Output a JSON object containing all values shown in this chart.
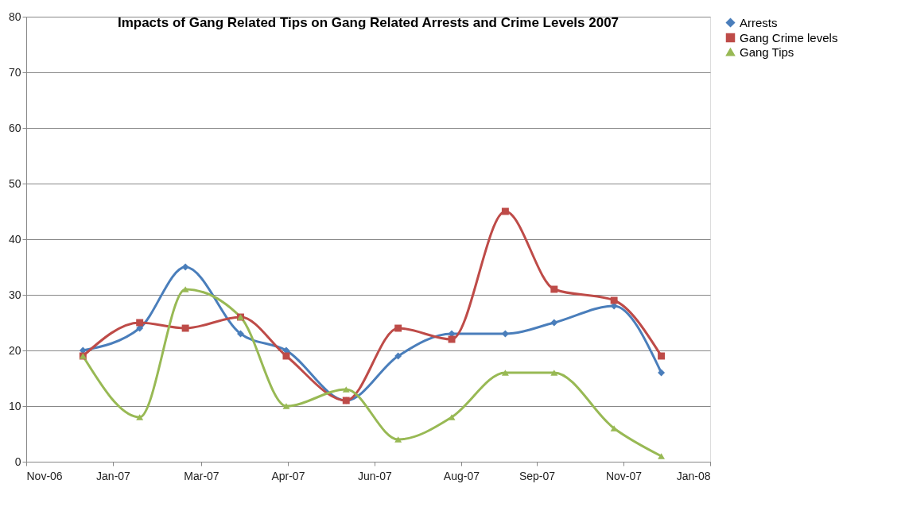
{
  "chart_data": {
    "type": "line",
    "title": "Impacts of Gang Related Tips on  Gang Related Arrests and Crime Levels 2007",
    "x": [
      "2006-12-16",
      "2007-01-21",
      "2007-02-19",
      "2007-03-26",
      "2007-04-24",
      "2007-06-01",
      "2007-07-04",
      "2007-08-07",
      "2007-09-10",
      "2007-10-11",
      "2007-11-18",
      "2007-12-18"
    ],
    "series": [
      {
        "name": "Arrests",
        "color": "#4a7ebb",
        "marker": "diamond",
        "values": [
          20,
          24,
          35,
          23,
          20,
          11,
          19,
          23,
          23,
          25,
          28,
          16
        ]
      },
      {
        "name": "Gang Crime levels",
        "color": "#be4b48",
        "marker": "square",
        "values": [
          19,
          25,
          24,
          26,
          19,
          11,
          24,
          22,
          45,
          31,
          29,
          19
        ]
      },
      {
        "name": "Gang Tips",
        "color": "#98b954",
        "marker": "triangle",
        "values": [
          19,
          8,
          31,
          26,
          10,
          13,
          4,
          8,
          16,
          16,
          6,
          1
        ]
      }
    ],
    "xlim": [
      "2006-11-10",
      "2008-01-18"
    ],
    "xticks": [
      {
        "value": "2006-11-10",
        "label": "Nov-06"
      },
      {
        "value": "2007-01-04",
        "label": "Jan-07"
      },
      {
        "value": "2007-03-01",
        "label": "Mar-07"
      },
      {
        "value": "2007-04-25",
        "label": "Apr-07"
      },
      {
        "value": "2007-06-19",
        "label": "Jun-07"
      },
      {
        "value": "2007-08-13",
        "label": "Aug-07"
      },
      {
        "value": "2007-09-30",
        "label": "Sep-07"
      },
      {
        "value": "2007-11-24",
        "label": "Nov-07"
      },
      {
        "value": "2008-01-18",
        "label": "Jan-08"
      }
    ],
    "ylim": [
      0,
      80
    ],
    "yticks": [
      0,
      10,
      20,
      30,
      40,
      50,
      60,
      70,
      80
    ],
    "grid": "y",
    "legend": "right",
    "line_style": "solid"
  }
}
